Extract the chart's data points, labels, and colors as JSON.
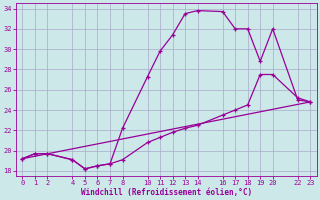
{
  "xlabel": "Windchill (Refroidissement éolien,°C)",
  "bg_color": "#cce8e8",
  "line_color": "#990099",
  "grid_color": "#aaaacc",
  "xlim": [
    -0.5,
    23.5
  ],
  "ylim": [
    17.5,
    34.5
  ],
  "xticks": [
    0,
    1,
    2,
    4,
    5,
    6,
    7,
    8,
    10,
    11,
    12,
    13,
    14,
    16,
    17,
    18,
    19,
    20,
    22,
    23
  ],
  "yticks": [
    18,
    20,
    22,
    24,
    26,
    28,
    30,
    32,
    34
  ],
  "line1_x": [
    0,
    1,
    2,
    4,
    5,
    6,
    7,
    8,
    10,
    11,
    12,
    13,
    14,
    16,
    17,
    18,
    19,
    20,
    22,
    23
  ],
  "line1_y": [
    19.2,
    19.7,
    19.7,
    19.1,
    18.2,
    18.5,
    18.7,
    22.2,
    27.3,
    29.8,
    31.4,
    33.5,
    33.8,
    33.7,
    32.0,
    32.0,
    28.8,
    32.0,
    25.0,
    24.8
  ],
  "line2_x": [
    0,
    1,
    2,
    4,
    5,
    6,
    7,
    8,
    10,
    11,
    12,
    13,
    14,
    16,
    17,
    18,
    19,
    20,
    22,
    23
  ],
  "line2_y": [
    19.2,
    19.7,
    19.7,
    19.1,
    18.2,
    18.5,
    18.7,
    19.1,
    20.8,
    21.3,
    21.8,
    22.2,
    22.5,
    23.5,
    24.0,
    24.5,
    27.5,
    27.5,
    25.2,
    24.8
  ],
  "line3_x": [
    0,
    23
  ],
  "line3_y": [
    19.2,
    24.8
  ]
}
